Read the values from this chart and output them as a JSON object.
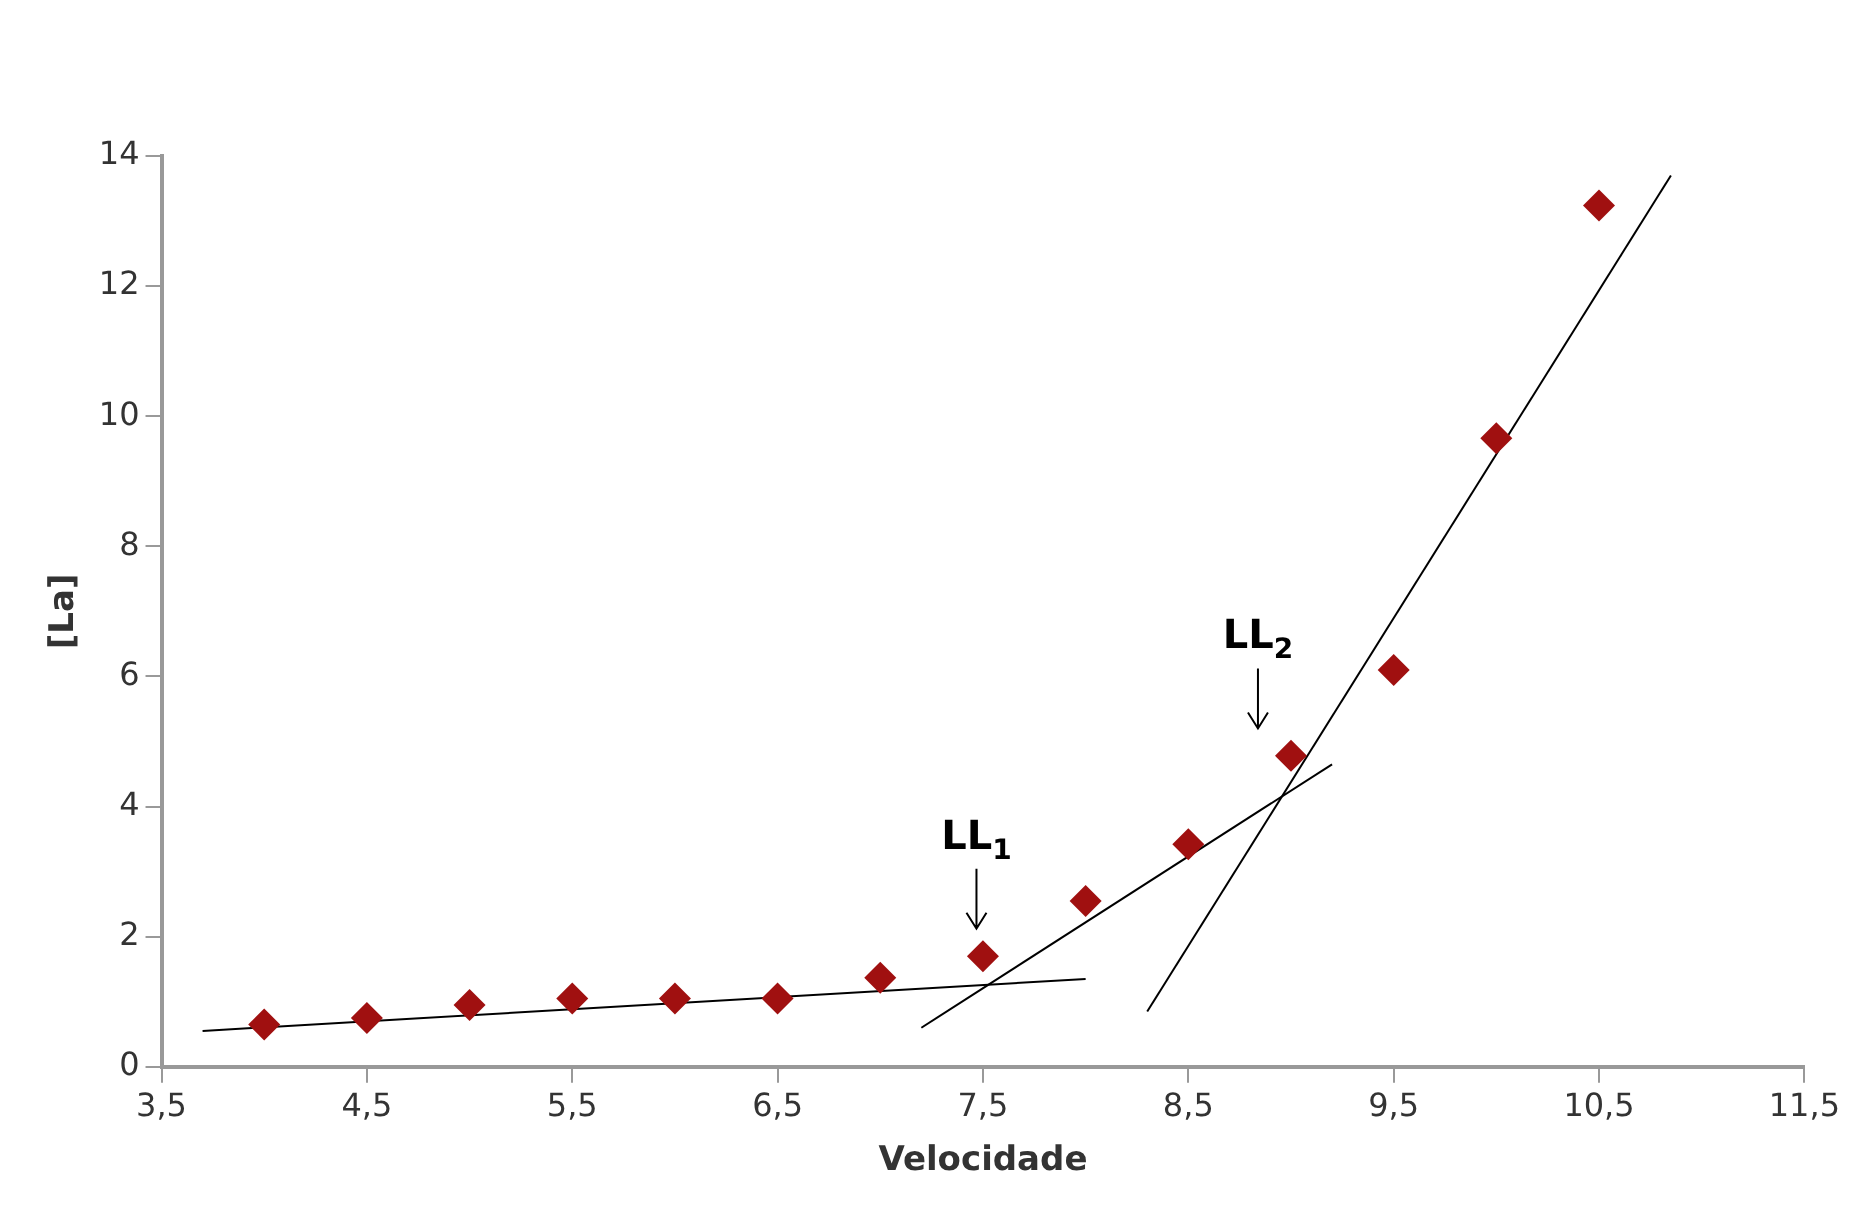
{
  "chart_data": {
    "type": "scatter",
    "xlabel": "Velocidade",
    "ylabel": "[La]",
    "xlim": [
      3.5,
      11.5
    ],
    "ylim": [
      0,
      14
    ],
    "xticks": [
      {
        "value": 3.5,
        "label": "3,5"
      },
      {
        "value": 4.5,
        "label": "4,5"
      },
      {
        "value": 5.5,
        "label": "5,5"
      },
      {
        "value": 6.5,
        "label": "6,5"
      },
      {
        "value": 7.5,
        "label": "7,5"
      },
      {
        "value": 8.5,
        "label": "8,5"
      },
      {
        "value": 9.5,
        "label": "9,5"
      },
      {
        "value": 10.5,
        "label": "10,5"
      },
      {
        "value": 11.5,
        "label": "11,5"
      }
    ],
    "yticks": [
      0,
      2,
      4,
      6,
      8,
      10,
      12,
      14
    ],
    "grid": false,
    "legend": false,
    "series": [
      {
        "marker": "diamond",
        "color": "#a01010",
        "x": [
          4,
          4.5,
          5,
          5.5,
          6,
          6.5,
          7,
          7.5,
          8,
          8.5,
          9,
          9.5,
          10,
          10.5
        ],
        "values": [
          0.65,
          0.75,
          0.95,
          1.05,
          1.05,
          1.05,
          1.37,
          1.7,
          2.55,
          3.42,
          4.78,
          6.1,
          9.66,
          13.24
        ]
      },
      {
        "type": "line",
        "color": "#000000",
        "x": [
          3.7,
          8.0
        ],
        "values": [
          0.55,
          1.35
        ]
      },
      {
        "type": "line",
        "color": "#000000",
        "x": [
          7.2,
          9.2
        ],
        "values": [
          0.6,
          4.65
        ]
      },
      {
        "type": "line",
        "color": "#000000",
        "x": [
          8.3,
          10.85
        ],
        "values": [
          0.85,
          13.7
        ]
      }
    ],
    "annotations": [
      "LL$_{1}$",
      "LL$_{2}$"
    ]
  }
}
